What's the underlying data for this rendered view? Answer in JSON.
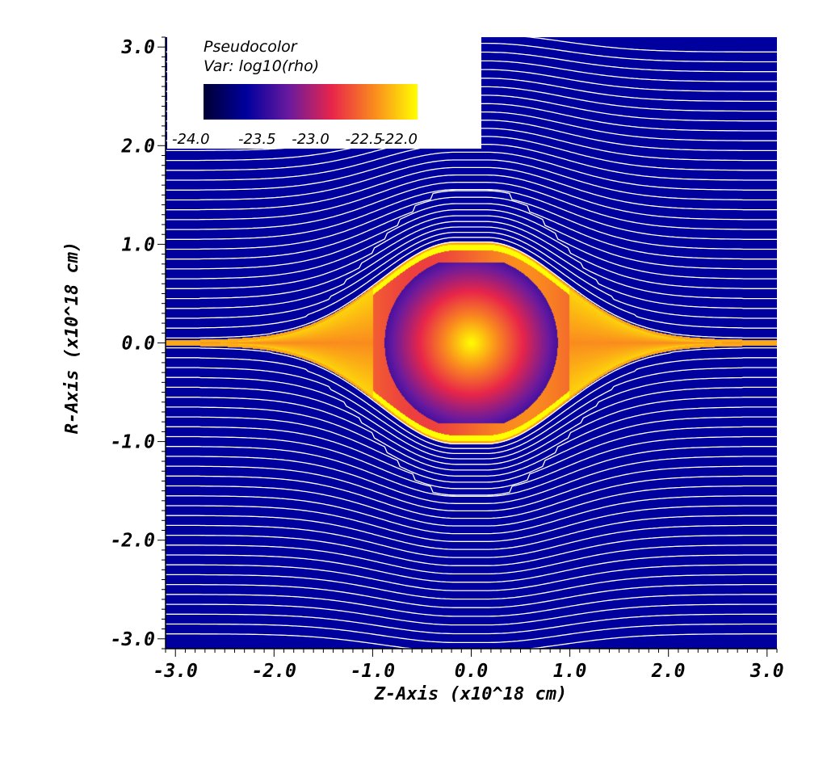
{
  "chart_data": {
    "type": "heatmap",
    "title": "",
    "xlabel": "Z-Axis (x10^18 cm)",
    "ylabel": "R-Axis (x10^18 cm)",
    "xlim": [
      -3.1,
      3.1
    ],
    "ylim": [
      -3.1,
      3.1
    ],
    "x_ticks": [
      {
        "value": -3.0,
        "label": "-3.0"
      },
      {
        "value": -2.0,
        "label": "-2.0"
      },
      {
        "value": -1.0,
        "label": "-1.0"
      },
      {
        "value": 0.0,
        "label": "0.0"
      },
      {
        "value": 1.0,
        "label": "1.0"
      },
      {
        "value": 2.0,
        "label": "2.0"
      },
      {
        "value": 3.0,
        "label": "3.0"
      }
    ],
    "y_ticks": [
      {
        "value": 3.0,
        "label": "3.0"
      },
      {
        "value": 2.0,
        "label": "2.0"
      },
      {
        "value": 1.0,
        "label": "1.0"
      },
      {
        "value": 0.0,
        "label": "0.0"
      },
      {
        "value": -1.0,
        "label": "-1.0"
      },
      {
        "value": -2.0,
        "label": "-2.0"
      },
      {
        "value": -3.0,
        "label": "-3.0"
      }
    ],
    "legend": {
      "title": "Pseudocolor",
      "variable": "Var: log10(rho)",
      "placement": "top-left",
      "range": [
        -24.0,
        -22.0
      ],
      "ticks": [
        "-24.0",
        "-23.5",
        "-23.0",
        "-22.5",
        "-22.0"
      ],
      "colormap": [
        "#000033",
        "#00009e",
        "#6a1a9e",
        "#e8254a",
        "#fa8c1e",
        "#ffff00"
      ]
    },
    "field": {
      "background_value": -23.6,
      "outer_shell_half_width": 1.0,
      "tail_tip_z": 2.75,
      "inner_cavity_radius": 0.82,
      "inner_cavity_z_cut": 1.25,
      "core_peak_value": -22.0
    },
    "streamlines": {
      "color": "#ffffff",
      "spacing": 0.1,
      "count_per_side": 30
    }
  }
}
